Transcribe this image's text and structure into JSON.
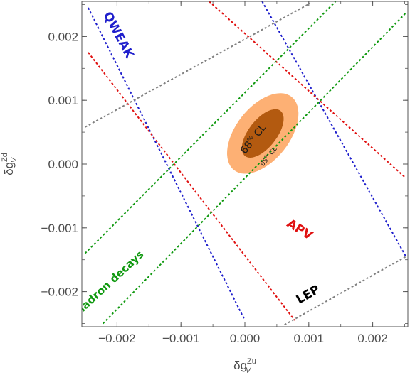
{
  "chart_data": {
    "type": "contour",
    "xlabel_base": "δg",
    "xlabel_sub": "V",
    "xlabel_sup": "Zu",
    "ylabel_base": "δg",
    "ylabel_sub": "V",
    "ylabel_sup": "Zd",
    "xlim": [
      -0.00255,
      0.00255
    ],
    "ylim": [
      -0.00255,
      0.00255
    ],
    "xticks": [
      {
        "value": -0.002,
        "label": "−0.002"
      },
      {
        "value": -0.001,
        "label": "−0.001"
      },
      {
        "value": 0.0,
        "label": "0.000"
      },
      {
        "value": 0.001,
        "label": "0.001"
      },
      {
        "value": 0.002,
        "label": "0.002"
      }
    ],
    "yticks": [
      {
        "value": -0.002,
        "label": "−0.002"
      },
      {
        "value": -0.001,
        "label": "−0.001"
      },
      {
        "value": 0.0,
        "label": "0.000"
      },
      {
        "value": 0.001,
        "label": "0.001"
      },
      {
        "value": 0.002,
        "label": "0.002"
      }
    ],
    "constraint_bands": [
      {
        "name": "QWEAK",
        "color": "#1f1fcc",
        "lines": [
          {
            "x": [
              -0.00245,
              0.0
            ],
            "y": [
              0.00245,
              -0.00245
            ]
          },
          {
            "x": [
              0.00027,
              0.00252
            ],
            "y": [
              0.00255,
              -0.00145
            ]
          }
        ]
      },
      {
        "name": "APV",
        "color": "#e01010",
        "lines": [
          {
            "x": [
              -0.00245,
              0.00078
            ],
            "y": [
              0.00175,
              -0.00245
            ]
          },
          {
            "x": [
              -0.00056,
              0.00252
            ],
            "y": [
              0.00255,
              -0.00022
            ]
          }
        ]
      },
      {
        "name": "hadron decays",
        "color": "#109910",
        "lines": [
          {
            "x": [
              -0.0025,
              0.00142
            ],
            "y": [
              -0.0014,
              0.00255
            ]
          },
          {
            "x": [
              -0.00222,
              0.00252
            ],
            "y": [
              -0.0025,
              0.00237
            ]
          }
        ]
      },
      {
        "name": "LEP",
        "color": "#808080",
        "lines": [
          {
            "x": [
              -0.0025,
              0.00102
            ],
            "y": [
              0.00058,
              0.00252
            ]
          },
          {
            "x": [
              0.00062,
              0.00252
            ],
            "y": [
              -0.00252,
              -0.00145
            ]
          }
        ]
      }
    ],
    "ellipses": [
      {
        "label": "95% CL",
        "color": "#fdb074",
        "center": [
          0.00028,
          0.00048
        ],
        "semi_axes": [
          0.00073,
          0.00042
        ],
        "angle_deg": 52
      },
      {
        "label": "68% CL",
        "color": "#b35a10",
        "center": [
          0.00028,
          0.00048
        ],
        "semi_axes": [
          0.00045,
          0.00022
        ],
        "angle_deg": 52
      }
    ],
    "band_labels": [
      {
        "text": "QWEAK",
        "color": "#1f1fcc",
        "x": -0.00198,
        "y": 0.00202,
        "angle_deg": 62
      },
      {
        "text": "APV",
        "color": "#e01010",
        "x": 0.000855,
        "y": -0.00103,
        "angle_deg": 32
      },
      {
        "text": "hadron decays",
        "color": "#109910",
        "x": -0.00211,
        "y": -0.00186,
        "angle_deg": -43
      },
      {
        "text": "LEP",
        "color": "#000000",
        "x": 0.00099,
        "y": -0.00205,
        "angle_deg": -30
      }
    ],
    "ellipse_labels": [
      {
        "text": "68% CL",
        "x": 0.000135,
        "y": 0.00039,
        "angle_deg": -52
      },
      {
        "text": "95% CL",
        "x": 0.00037,
        "y": 0.00012,
        "angle_deg": -52
      }
    ],
    "grid": false
  }
}
